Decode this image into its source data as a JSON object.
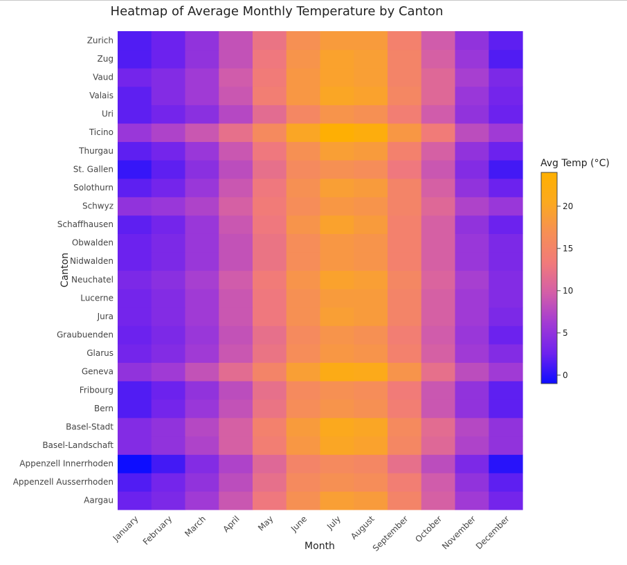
{
  "chart_data": {
    "type": "heatmap",
    "title": "Heatmap of Average Monthly Temperature by Canton",
    "xlabel": "Month",
    "ylabel": "Canton",
    "x": [
      "January",
      "February",
      "March",
      "April",
      "May",
      "June",
      "July",
      "August",
      "September",
      "October",
      "November",
      "December"
    ],
    "y": [
      "Aargau",
      "Appenzell Ausserrhoden",
      "Appenzell Innerrhoden",
      "Basel-Landschaft",
      "Basel-Stadt",
      "Bern",
      "Fribourg",
      "Geneva",
      "Glarus",
      "Graubuenden",
      "Jura",
      "Lucerne",
      "Neuchatel",
      "Nidwalden",
      "Obwalden",
      "Schaffhausen",
      "Schwyz",
      "Solothurn",
      "St. Gallen",
      "Thurgau",
      "Ticino",
      "Uri",
      "Valais",
      "Vaud",
      "Zug",
      "Zurich"
    ],
    "z": [
      [
        2.5,
        3.5,
        6,
        9,
        13,
        17,
        19,
        18.5,
        15,
        10,
        6,
        3
      ],
      [
        1.5,
        3,
        5,
        8,
        12,
        16,
        17,
        16.5,
        14,
        9.5,
        5,
        2
      ],
      [
        -1,
        1,
        4,
        7,
        11,
        15,
        16,
        15.5,
        12,
        8,
        3.5,
        0
      ],
      [
        4,
        5,
        7,
        10,
        14,
        18,
        20,
        19.5,
        15.5,
        11,
        7,
        5
      ],
      [
        4,
        5,
        7.5,
        10,
        14.5,
        18.5,
        20.5,
        20,
        16,
        11.5,
        7.5,
        5
      ],
      [
        1.5,
        3,
        5.5,
        8.5,
        12.5,
        16.5,
        17.5,
        17,
        14,
        9,
        5,
        2
      ],
      [
        1.5,
        2.5,
        5,
        8,
        12,
        16,
        17,
        16.5,
        13.5,
        9,
        5,
        2
      ],
      [
        5,
        6,
        8.5,
        11.5,
        15,
        19,
        21.5,
        21,
        17.5,
        12,
        8,
        6
      ],
      [
        3,
        4,
        6,
        9,
        12.5,
        16.5,
        18,
        17.5,
        14.5,
        10,
        6,
        4
      ],
      [
        2.5,
        3.5,
        5.5,
        8.5,
        12,
        16,
        17.5,
        17,
        14,
        9.5,
        5.5,
        2.5
      ],
      [
        3,
        4,
        6,
        9,
        13,
        17,
        19,
        18.5,
        15,
        10,
        6,
        3.5
      ],
      [
        3,
        4,
        6,
        9,
        13,
        17,
        18.5,
        18.5,
        15,
        10,
        6,
        4
      ],
      [
        3.5,
        4.5,
        6.5,
        9.5,
        13.5,
        17.5,
        19.5,
        19,
        15.5,
        10.5,
        6.5,
        4
      ],
      [
        2.5,
        3.5,
        5.5,
        8.5,
        12.5,
        16.5,
        18,
        17.5,
        14.5,
        10,
        5.5,
        3.5
      ],
      [
        2.5,
        3.5,
        5.5,
        8.5,
        12.5,
        16.5,
        18,
        17.5,
        14.5,
        10,
        5.5,
        3.5
      ],
      [
        2,
        3,
        5.5,
        9,
        13,
        17.5,
        19.5,
        18.5,
        14.5,
        10,
        5,
        2.5
      ],
      [
        5,
        5.5,
        7,
        10,
        13.5,
        16.5,
        18,
        17.5,
        15,
        11,
        7,
        5.5
      ],
      [
        2,
        3,
        5.5,
        9,
        13,
        17,
        19,
        18.5,
        15,
        10,
        5,
        2.5
      ],
      [
        0.5,
        2,
        4.5,
        8,
        12,
        16,
        17,
        16.5,
        13,
        9,
        4,
        1
      ],
      [
        2,
        3,
        5.5,
        9,
        13,
        17,
        19,
        18.5,
        14.5,
        10,
        5,
        2.5
      ],
      [
        5.5,
        7,
        9,
        12,
        16,
        20,
        23.5,
        22.5,
        18,
        13.5,
        8,
        6
      ],
      [
        2,
        3,
        4.5,
        7.5,
        11.5,
        15.5,
        17.5,
        17,
        14,
        9.5,
        5,
        2.5
      ],
      [
        2,
        4,
        6,
        9,
        14,
        18,
        20,
        19.5,
        15.5,
        11,
        5.5,
        3
      ],
      [
        3,
        4,
        6,
        9.5,
        13.5,
        18,
        19.5,
        19,
        15,
        11,
        6.5,
        3.5
      ],
      [
        1.5,
        2.5,
        5,
        8.5,
        13,
        17.5,
        19.5,
        19,
        15,
        10,
        5.5,
        1.5
      ],
      [
        1.5,
        2.5,
        5,
        8.5,
        12.5,
        17,
        18.5,
        18.5,
        14.5,
        9.5,
        5,
        2
      ]
    ],
    "colorscale": [
      "#0d0dff",
      "#6e22ee",
      "#a23bd4",
      "#d35ea8",
      "#f17a7a",
      "#f68f55",
      "#fba91f",
      "#ffb000"
    ],
    "zrange": [
      -1,
      24
    ],
    "colorbar_title": "Avg Temp (°C)",
    "colorbar_ticks": [
      0,
      5,
      10,
      15,
      20
    ],
    "grid": false,
    "legend": "right"
  }
}
